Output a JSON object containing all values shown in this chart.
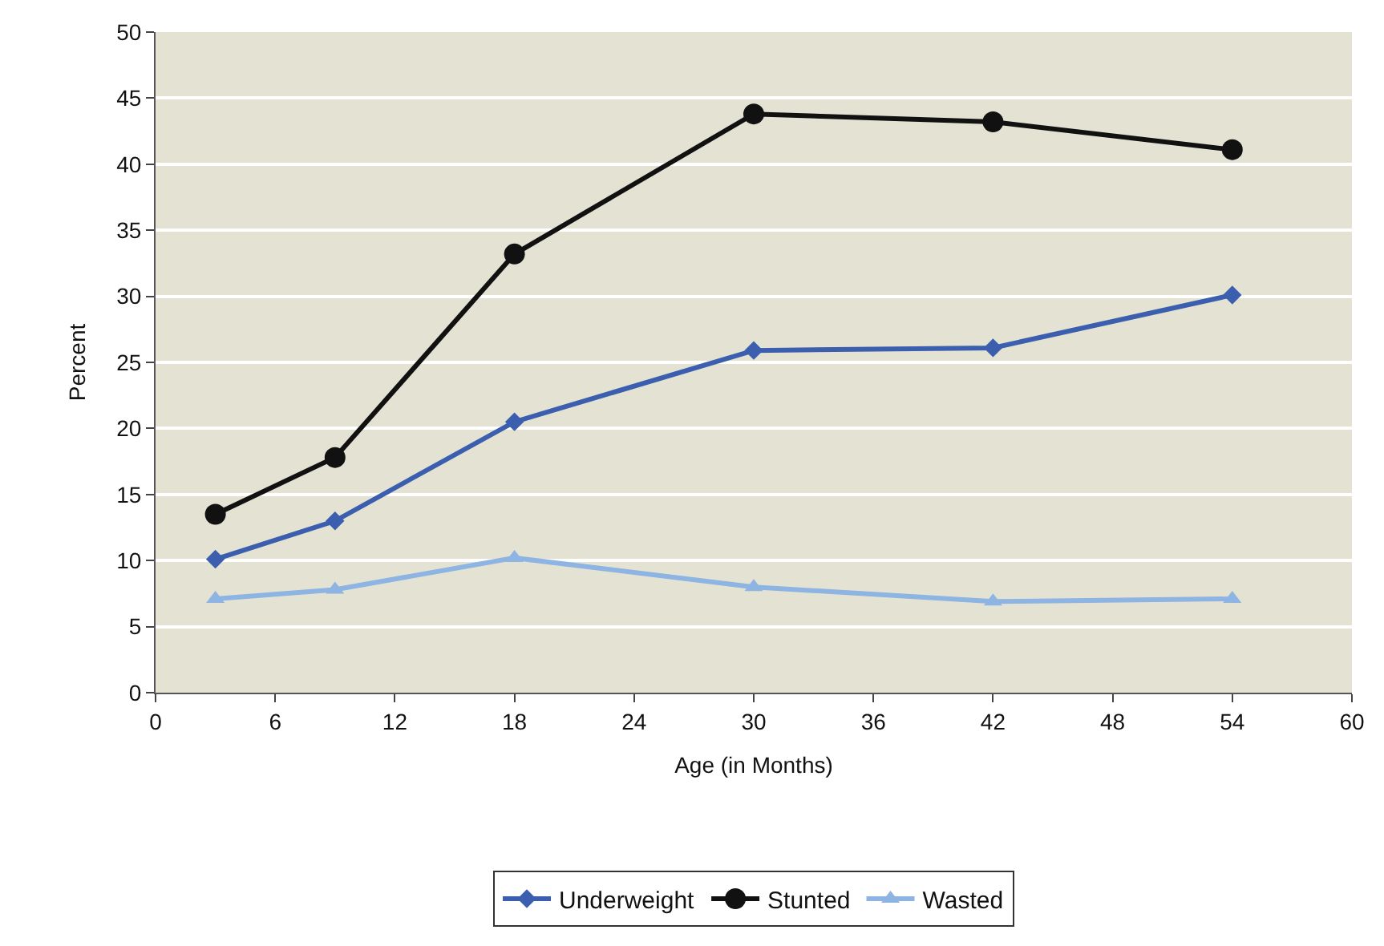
{
  "chart_data": {
    "type": "line",
    "xlabel": "Age (in Months)",
    "ylabel": "Percent",
    "x": [
      3,
      9,
      18,
      30,
      42,
      54
    ],
    "series": [
      {
        "name": "Underweight",
        "color": "#3b5fae",
        "marker": "diamond",
        "values": [
          10.1,
          13,
          20.5,
          25.9,
          26.1,
          30.1
        ]
      },
      {
        "name": "Stunted",
        "color": "#111111",
        "marker": "circle",
        "values": [
          13.5,
          17.8,
          33.2,
          43.8,
          43.2,
          41.1
        ]
      },
      {
        "name": "Wasted",
        "color": "#8db4e2",
        "marker": "triangle",
        "values": [
          7.1,
          7.8,
          10.2,
          8,
          6.9,
          7.1
        ]
      }
    ],
    "xlim": [
      0,
      60
    ],
    "xticks": [
      0,
      6,
      12,
      18,
      24,
      30,
      36,
      42,
      48,
      54,
      60
    ],
    "ylim": [
      0,
      50
    ],
    "yticks": [
      0,
      5,
      10,
      15,
      20,
      25,
      30,
      35,
      40,
      45,
      50
    ],
    "grid": "y",
    "legend": "bottom",
    "line_style": "solid"
  }
}
